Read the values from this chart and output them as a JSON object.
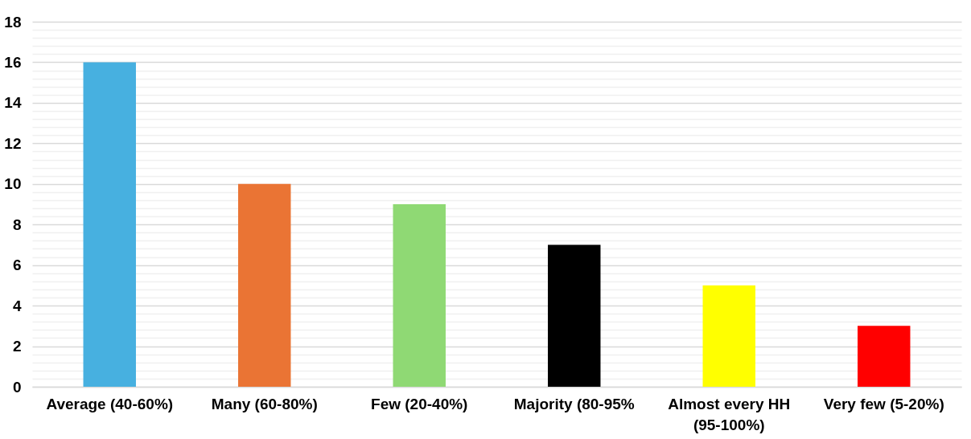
{
  "chart_data": {
    "type": "bar",
    "categories": [
      "Average (40-60%)",
      "Many (60-80%)",
      "Few (20-40%)",
      "Majority (80-95%",
      "Almost every HH\n(95-100%)",
      "Very few (5-20%)"
    ],
    "values": [
      16,
      10,
      9,
      7,
      5,
      3
    ],
    "colors": [
      "#47b0e0",
      "#ea7434",
      "#8fd974",
      "#000000",
      "#ffff00",
      "#ff0000"
    ],
    "ylim": [
      0,
      18
    ],
    "yticks": [
      0,
      {
        "value": 0.4,
        "label": null
      },
      {
        "value": 0.8,
        "label": null
      },
      {
        "value": 1.2,
        "label": null
      },
      {
        "value": 1.6,
        "label": null
      },
      2,
      {
        "value": 2.4,
        "label": null
      },
      {
        "value": 2.8,
        "label": null
      },
      {
        "value": 3.2,
        "label": null
      },
      {
        "value": 3.6,
        "label": null
      },
      4,
      {
        "value": 4.4,
        "label": null
      },
      {
        "value": 4.8,
        "label": null
      },
      {
        "value": 5.2,
        "label": null
      },
      {
        "value": 5.6,
        "label": null
      },
      6,
      {
        "value": 6.4,
        "label": null
      },
      {
        "value": 6.8,
        "label": null
      },
      {
        "value": 7.2,
        "label": null
      },
      {
        "value": 7.6,
        "label": null
      },
      8,
      {
        "value": 8.4,
        "label": null
      },
      {
        "value": 8.8,
        "label": null
      },
      {
        "value": 9.2,
        "label": null
      },
      {
        "value": 9.6,
        "label": null
      },
      10,
      {
        "value": 10.4,
        "label": null
      },
      {
        "value": 10.8,
        "label": null
      },
      {
        "value": 11.2,
        "label": null
      },
      {
        "value": 11.6,
        "label": null
      },
      12,
      {
        "value": 12.4,
        "label": null
      },
      {
        "value": 12.8,
        "label": null
      },
      {
        "value": 13.2,
        "label": null
      },
      {
        "value": 13.6,
        "label": null
      },
      14,
      {
        "value": 14.4,
        "label": null
      },
      {
        "value": 14.8,
        "label": null
      },
      {
        "value": 15.2,
        "label": null
      },
      {
        "value": 15.6,
        "label": null
      },
      16,
      {
        "value": 16.4,
        "label": null
      },
      {
        "value": 16.8,
        "label": null
      },
      {
        "value": 17.2,
        "label": null
      },
      {
        "value": 17.6,
        "label": null
      },
      18
    ],
    "grid": "y"
  }
}
